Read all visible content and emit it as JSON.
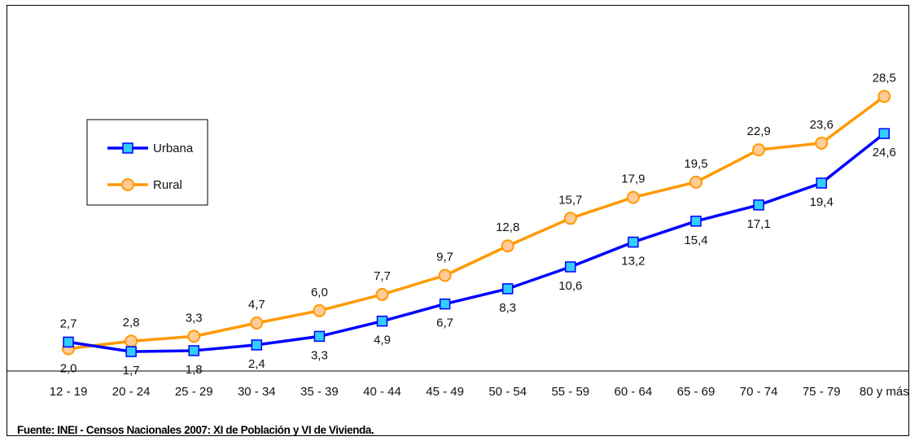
{
  "chart_data": {
    "type": "line",
    "categories": [
      "12 - 19",
      "20 - 24",
      "25 - 29",
      "30 - 34",
      "35 - 39",
      "40 - 44",
      "45 - 49",
      "50 - 54",
      "55 - 59",
      "60 - 64",
      "65 - 69",
      "70 - 74",
      "75 - 79",
      "80 y más"
    ],
    "series": [
      {
        "name": "Urbana",
        "values": [
          2.7,
          1.7,
          1.8,
          2.4,
          3.3,
          4.9,
          6.7,
          8.3,
          10.6,
          13.2,
          15.4,
          17.1,
          19.4,
          24.6
        ],
        "labels": [
          "2,7",
          "1,7",
          "1,8",
          "2,4",
          "3,3",
          "4,9",
          "6,7",
          "8,3",
          "10,6",
          "13,2",
          "15,4",
          "17,1",
          "19,4",
          "24,6"
        ],
        "color": "#0000ff",
        "marker": "square",
        "marker_color": "#33ccff"
      },
      {
        "name": "Rural",
        "values": [
          2.0,
          2.8,
          3.3,
          4.7,
          6.0,
          7.7,
          9.7,
          12.8,
          15.7,
          17.9,
          19.5,
          22.9,
          23.6,
          28.5
        ],
        "labels": [
          "2,0",
          "2,8",
          "3,3",
          "4,7",
          "6,0",
          "7,7",
          "9,7",
          "12,8",
          "15,7",
          "17,9",
          "19,5",
          "22,9",
          "23,6",
          "28,5"
        ],
        "color": "#ff9900",
        "marker": "circle",
        "marker_color": "#ffcc99"
      }
    ],
    "title": "",
    "xlabel": "",
    "ylabel": "",
    "ylim": [
      0,
      30
    ],
    "grid": false,
    "legend_position": "left"
  },
  "source": "Fuente: INEI - Censos Nacionales 2007: XI de Población y VI de Vivienda."
}
